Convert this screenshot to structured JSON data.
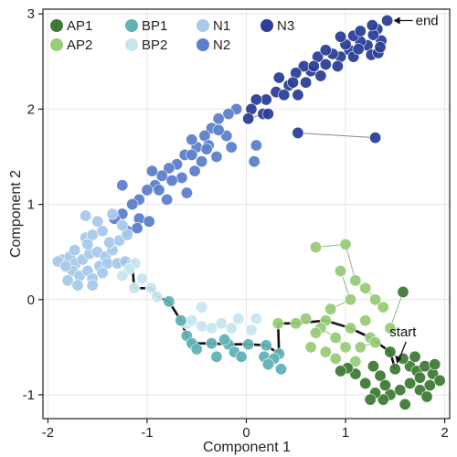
{
  "chart_data": {
    "type": "scatter",
    "xlabel": "Component 1",
    "ylabel": "Component 2",
    "xlim": [
      -2.05,
      2.05
    ],
    "ylim": [
      -1.25,
      3.05
    ],
    "xticks": [
      "-2",
      "-1",
      "0",
      "1",
      "2"
    ],
    "yticks": [
      "-1",
      "0",
      "1",
      "2",
      "3"
    ],
    "grid": true,
    "legend_position": "top-left",
    "legend": [
      {
        "label": "AP1",
        "color": "#3f7a36"
      },
      {
        "label": "BP1",
        "color": "#5fb2b5"
      },
      {
        "label": "N1",
        "color": "#a7c9ea"
      },
      {
        "label": "N3",
        "color": "#2b3f98"
      },
      {
        "label": "AP2",
        "color": "#9acb7a"
      },
      {
        "label": "BP2",
        "color": "#c8e6ef"
      },
      {
        "label": "N2",
        "color": "#5d7fcb"
      }
    ],
    "annotations": [
      {
        "text": "end",
        "x": 1.42,
        "y": 2.93
      },
      {
        "text": "start",
        "x": 1.5,
        "y": -0.73
      }
    ],
    "trajectory": [
      [
        -1.3,
        0.38
      ],
      [
        -1.22,
        0.4
      ],
      [
        -1.15,
        0.37
      ],
      [
        -1.13,
        0.12
      ],
      [
        -0.96,
        0.12
      ],
      [
        -0.9,
        0.03
      ],
      [
        -0.78,
        -0.02
      ],
      [
        -0.66,
        -0.22
      ],
      [
        -0.6,
        -0.38
      ],
      [
        -0.55,
        -0.46
      ],
      [
        -0.35,
        -0.46
      ],
      [
        -0.18,
        -0.47
      ],
      [
        0.02,
        -0.47
      ],
      [
        0.2,
        -0.48
      ],
      [
        0.33,
        -0.57
      ],
      [
        0.32,
        -0.25
      ],
      [
        0.5,
        -0.25
      ],
      [
        0.8,
        -0.22
      ],
      [
        1.05,
        -0.3
      ],
      [
        1.25,
        -0.4
      ],
      [
        1.45,
        -0.55
      ],
      [
        1.5,
        -0.73
      ]
    ],
    "series": [
      {
        "color": "#2b3f98",
        "points": [
          [
            1.42,
            2.93
          ],
          [
            1.32,
            2.84
          ],
          [
            1.36,
            2.72
          ],
          [
            1.28,
            2.78
          ],
          [
            1.22,
            2.67
          ],
          [
            1.15,
            2.71
          ],
          [
            1.08,
            2.77
          ],
          [
            1.04,
            2.62
          ],
          [
            1.26,
            2.57
          ],
          [
            1.33,
            2.59
          ],
          [
            0.95,
            2.55
          ],
          [
            1.08,
            2.55
          ],
          [
            0.87,
            2.58
          ],
          [
            0.8,
            2.47
          ],
          [
            0.72,
            2.55
          ],
          [
            0.92,
            2.45
          ],
          [
            0.65,
            2.4
          ],
          [
            0.58,
            2.45
          ],
          [
            0.5,
            2.38
          ],
          [
            1.0,
            2.68
          ],
          [
            1.13,
            2.63
          ],
          [
            0.6,
            2.28
          ],
          [
            0.52,
            2.15
          ],
          [
            0.43,
            2.25
          ],
          [
            0.33,
            2.33
          ],
          [
            0.3,
            2.18
          ],
          [
            0.2,
            2.1
          ],
          [
            0.1,
            2.1
          ],
          [
            0.05,
            2.0
          ],
          [
            0.02,
            1.9
          ],
          [
            0.17,
            1.95
          ],
          [
            1.15,
            2.82
          ],
          [
            1.27,
            2.88
          ],
          [
            0.75,
            2.35
          ],
          [
            0.47,
            2.28
          ],
          [
            0.38,
            2.15
          ],
          [
            0.52,
            1.75
          ],
          [
            1.3,
            1.7
          ],
          [
            0.8,
            2.62
          ],
          [
            0.95,
            2.76
          ],
          [
            1.35,
            2.65
          ],
          [
            0.22,
            1.95
          ],
          [
            0.68,
            2.45
          ]
        ]
      },
      {
        "color": "#5d7fcb",
        "points": [
          [
            -0.1,
            2.0
          ],
          [
            -0.18,
            1.95
          ],
          [
            -0.28,
            1.9
          ],
          [
            -0.35,
            1.8
          ],
          [
            -0.42,
            1.72
          ],
          [
            -0.5,
            1.6
          ],
          [
            -0.55,
            1.68
          ],
          [
            -0.62,
            1.52
          ],
          [
            -0.7,
            1.42
          ],
          [
            -0.78,
            1.38
          ],
          [
            -0.85,
            1.3
          ],
          [
            -0.92,
            1.2
          ],
          [
            -1.0,
            1.15
          ],
          [
            -1.08,
            1.05
          ],
          [
            -1.15,
            1.0
          ],
          [
            -1.25,
            0.9
          ],
          [
            -1.33,
            0.85
          ],
          [
            -0.45,
            1.45
          ],
          [
            -0.3,
            1.5
          ],
          [
            -0.2,
            1.72
          ],
          [
            -0.65,
            1.28
          ],
          [
            -0.88,
            1.15
          ],
          [
            -1.08,
            0.85
          ],
          [
            -1.2,
            0.72
          ],
          [
            -0.52,
            1.35
          ],
          [
            -0.38,
            1.62
          ],
          [
            -0.28,
            1.78
          ],
          [
            -0.95,
            1.35
          ],
          [
            -0.6,
            1.12
          ],
          [
            -0.98,
            0.82
          ],
          [
            -1.1,
            0.75
          ],
          [
            0.08,
            1.45
          ],
          [
            -0.15,
            1.6
          ],
          [
            -0.75,
            1.25
          ],
          [
            -1.25,
            1.2
          ],
          [
            -0.4,
            1.58
          ],
          [
            0.1,
            1.62
          ],
          [
            -0.55,
            1.52
          ],
          [
            -0.8,
            1.05
          ]
        ]
      },
      {
        "color": "#a7c9ea",
        "points": [
          [
            -1.85,
            0.42
          ],
          [
            -1.78,
            0.45
          ],
          [
            -1.72,
            0.38
          ],
          [
            -1.65,
            0.42
          ],
          [
            -1.58,
            0.48
          ],
          [
            -1.5,
            0.5
          ],
          [
            -1.42,
            0.45
          ],
          [
            -1.35,
            0.52
          ],
          [
            -1.75,
            0.3
          ],
          [
            -1.68,
            0.25
          ],
          [
            -1.6,
            0.3
          ],
          [
            -1.55,
            0.22
          ],
          [
            -1.48,
            0.35
          ],
          [
            -1.4,
            0.38
          ],
          [
            -1.8,
            0.2
          ],
          [
            -1.7,
            0.15
          ],
          [
            -1.62,
            0.65
          ],
          [
            -1.55,
            0.68
          ],
          [
            -1.45,
            0.72
          ],
          [
            -1.38,
            0.6
          ],
          [
            -1.28,
            0.62
          ],
          [
            -1.5,
            0.82
          ],
          [
            -1.62,
            0.88
          ],
          [
            -1.35,
            0.9
          ],
          [
            -1.25,
            0.78
          ],
          [
            -1.2,
            0.68
          ],
          [
            -1.3,
            0.38
          ],
          [
            -1.22,
            0.4
          ],
          [
            -1.15,
            0.37
          ],
          [
            -1.9,
            0.4
          ],
          [
            -1.82,
            0.35
          ],
          [
            -1.73,
            0.52
          ],
          [
            -1.6,
            0.58
          ],
          [
            -1.45,
            0.28
          ],
          [
            -1.55,
            0.15
          ]
        ]
      },
      {
        "color": "#c8e6ef",
        "points": [
          [
            -1.13,
            0.12
          ],
          [
            -0.96,
            0.12
          ],
          [
            -0.9,
            0.03
          ],
          [
            -0.6,
            -0.25
          ],
          [
            -0.55,
            -0.22
          ],
          [
            -0.45,
            -0.28
          ],
          [
            -0.35,
            -0.3
          ],
          [
            -0.25,
            -0.25
          ],
          [
            -0.08,
            -0.2
          ],
          [
            0.1,
            -0.2
          ],
          [
            -0.15,
            -0.3
          ],
          [
            0.05,
            -0.32
          ],
          [
            -0.45,
            -0.08
          ],
          [
            -1.12,
            0.38
          ],
          [
            -1.18,
            0.32
          ],
          [
            -1.25,
            0.25
          ],
          [
            -1.05,
            0.22
          ]
        ]
      },
      {
        "color": "#5fb2b5",
        "points": [
          [
            -0.78,
            -0.02
          ],
          [
            -0.66,
            -0.22
          ],
          [
            -0.6,
            -0.38
          ],
          [
            -0.55,
            -0.46
          ],
          [
            -0.35,
            -0.46
          ],
          [
            -0.18,
            -0.47
          ],
          [
            0.02,
            -0.47
          ],
          [
            0.2,
            -0.48
          ],
          [
            0.33,
            -0.57
          ],
          [
            -0.5,
            -0.52
          ],
          [
            -0.3,
            -0.6
          ],
          [
            -0.12,
            -0.55
          ],
          [
            0.18,
            -0.6
          ],
          [
            0.28,
            -0.62
          ],
          [
            0.35,
            -0.73
          ],
          [
            0.22,
            -0.68
          ],
          [
            -0.05,
            -0.6
          ],
          [
            -0.22,
            -0.42
          ]
        ]
      },
      {
        "color": "#9acb7a",
        "points": [
          [
            0.32,
            -0.25
          ],
          [
            0.5,
            -0.25
          ],
          [
            0.8,
            -0.22
          ],
          [
            1.05,
            -0.3
          ],
          [
            1.25,
            -0.4
          ],
          [
            0.7,
            0.55
          ],
          [
            1.0,
            0.58
          ],
          [
            1.1,
            0.2
          ],
          [
            1.2,
            0.12
          ],
          [
            1.3,
            0.0
          ],
          [
            1.38,
            -0.08
          ],
          [
            0.95,
            0.3
          ],
          [
            1.05,
            0.0
          ],
          [
            0.85,
            -0.1
          ],
          [
            0.75,
            -0.3
          ],
          [
            0.9,
            -0.4
          ],
          [
            1.0,
            -0.5
          ],
          [
            0.8,
            -0.55
          ],
          [
            1.15,
            -0.5
          ],
          [
            1.3,
            -0.45
          ],
          [
            0.6,
            -0.2
          ],
          [
            0.7,
            -0.35
          ],
          [
            0.9,
            -0.62
          ],
          [
            1.1,
            -0.65
          ],
          [
            1.2,
            -0.22
          ],
          [
            1.45,
            -0.3
          ],
          [
            0.65,
            -0.5
          ]
        ]
      },
      {
        "color": "#3f7a36",
        "points": [
          [
            1.5,
            -0.73
          ],
          [
            1.45,
            -0.55
          ],
          [
            1.58,
            0.08
          ],
          [
            1.65,
            -0.7
          ],
          [
            1.72,
            -0.75
          ],
          [
            1.8,
            -0.7
          ],
          [
            1.88,
            -0.78
          ],
          [
            1.95,
            -0.85
          ],
          [
            1.85,
            -0.9
          ],
          [
            1.75,
            -0.95
          ],
          [
            1.65,
            -0.88
          ],
          [
            1.55,
            -0.95
          ],
          [
            1.45,
            -1.0
          ],
          [
            1.38,
            -1.05
          ],
          [
            1.3,
            -0.98
          ],
          [
            1.2,
            -0.88
          ],
          [
            1.1,
            -0.78
          ],
          [
            1.02,
            -0.72
          ],
          [
            0.95,
            -0.75
          ],
          [
            1.35,
            -0.8
          ],
          [
            1.28,
            -0.7
          ],
          [
            1.58,
            -0.62
          ],
          [
            1.7,
            -0.6
          ],
          [
            1.9,
            -0.68
          ],
          [
            1.82,
            -1.02
          ],
          [
            1.6,
            -1.1
          ],
          [
            1.4,
            -0.9
          ],
          [
            1.75,
            -0.82
          ],
          [
            1.25,
            -1.05
          ]
        ]
      }
    ]
  }
}
